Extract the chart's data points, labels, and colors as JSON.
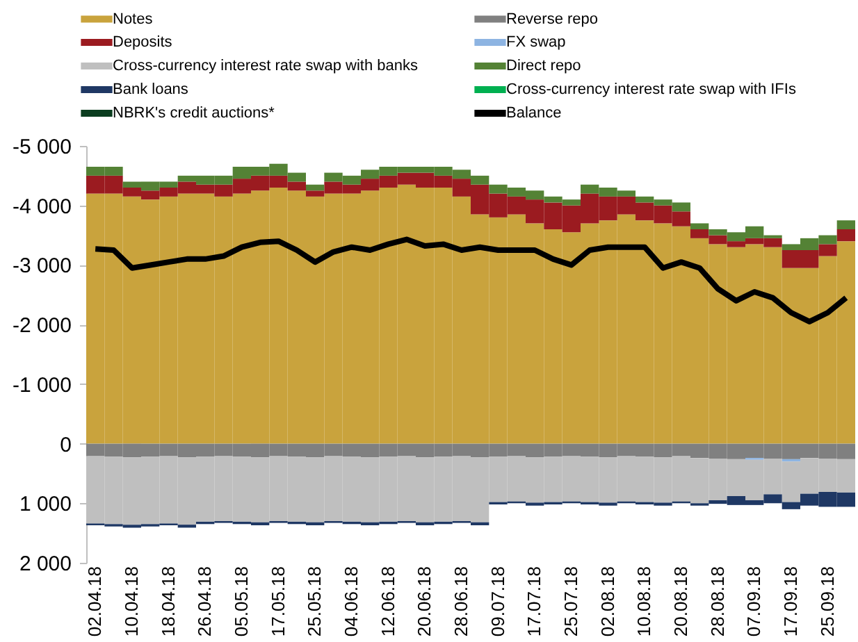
{
  "chart_data": {
    "type": "bar",
    "stacked": true,
    "legend": "top",
    "marker": "none",
    "categories": [
      "02.04.18",
      null,
      "10.04.18",
      null,
      "18.04.18",
      null,
      "26.04.18",
      null,
      "05.05.18",
      null,
      "17.05.18",
      null,
      "25.05.18",
      null,
      "04.06.18",
      null,
      "12.06.18",
      null,
      "20.06.18",
      null,
      "28.06.18",
      null,
      "09.07.18",
      null,
      "17.07.18",
      null,
      "25.07.18",
      null,
      "02.08.18",
      null,
      "10.08.18",
      null,
      "20.08.18",
      null,
      "28.08.18",
      null,
      "07.09.18",
      null,
      "17.09.18",
      null,
      "25.09.18",
      null
    ],
    "ylim": [
      2000,
      -5000
    ],
    "yticks": [
      {
        "value": -5000,
        "label": "-5 000"
      },
      {
        "value": -4000,
        "label": "-4 000"
      },
      {
        "value": -3000,
        "label": "-3 000"
      },
      {
        "value": -2000,
        "label": "-2 000"
      },
      {
        "value": -1000,
        "label": "-1 000"
      },
      0,
      {
        "value": 1000,
        "label": "1 000"
      },
      {
        "value": 2000,
        "label": "2 000"
      }
    ],
    "series": [
      {
        "name": "Notes",
        "color": "#c9a33d",
        "values": [
          -4200,
          -4200,
          -4150,
          -4100,
          -4150,
          -4200,
          -4200,
          -4150,
          -4200,
          -4250,
          -4300,
          -4250,
          -4150,
          -4200,
          -4200,
          -4250,
          -4300,
          -4350,
          -4300,
          -4300,
          -4150,
          -3850,
          -3800,
          -3850,
          -3700,
          -3600,
          -3550,
          -3700,
          -3750,
          -3850,
          -3750,
          -3700,
          -3650,
          -3450,
          -3350,
          -3300,
          -3350,
          -3300,
          -2950,
          -2950,
          -3150,
          -3400
        ]
      },
      {
        "name": "Reverse repo",
        "color": "#808080",
        "values": [
          210,
          220,
          230,
          220,
          210,
          230,
          220,
          210,
          220,
          230,
          210,
          220,
          230,
          210,
          220,
          230,
          220,
          210,
          230,
          220,
          210,
          230,
          220,
          210,
          230,
          220,
          210,
          220,
          230,
          210,
          220,
          230,
          210,
          240,
          250,
          260,
          240,
          250,
          260,
          240,
          250,
          260
        ]
      },
      {
        "name": "Deposits",
        "color": "#9b1b20",
        "values": [
          -300,
          -300,
          -150,
          -150,
          -150,
          -200,
          -150,
          -200,
          -250,
          -250,
          -200,
          -150,
          -100,
          -200,
          -150,
          -200,
          -200,
          -200,
          -250,
          -200,
          -300,
          -500,
          -400,
          -300,
          -400,
          -450,
          -450,
          -500,
          -400,
          -300,
          -300,
          -300,
          -250,
          -150,
          -150,
          -100,
          -100,
          -150,
          -300,
          -300,
          -200,
          -200
        ]
      },
      {
        "name": "FX swap",
        "color": "#8db4e2",
        "values": [
          0,
          0,
          0,
          0,
          0,
          0,
          0,
          0,
          0,
          0,
          0,
          0,
          0,
          0,
          0,
          0,
          0,
          0,
          0,
          0,
          0,
          0,
          0,
          0,
          0,
          0,
          0,
          0,
          0,
          0,
          0,
          0,
          0,
          0,
          0,
          0,
          30,
          0,
          40,
          0,
          0,
          0
        ]
      },
      {
        "name": "Cross-currency interest rate swap with banks",
        "color": "#bfbfbf",
        "values": [
          1130,
          1130,
          1130,
          1130,
          1130,
          1130,
          1090,
          1090,
          1090,
          1090,
          1090,
          1090,
          1090,
          1090,
          1090,
          1090,
          1090,
          1090,
          1090,
          1090,
          1090,
          1090,
          760,
          760,
          760,
          760,
          760,
          760,
          760,
          760,
          760,
          760,
          760,
          760,
          700,
          620,
          680,
          600,
          680,
          600,
          560,
          560
        ]
      },
      {
        "name": "Direct repo",
        "color": "#548235",
        "values": [
          -150,
          -150,
          -100,
          -150,
          -100,
          -100,
          -150,
          -150,
          -200,
          -150,
          -200,
          -150,
          -100,
          -150,
          -150,
          -150,
          -150,
          -100,
          -100,
          -150,
          -150,
          -150,
          -150,
          -150,
          -150,
          -100,
          -100,
          -150,
          -150,
          -100,
          -100,
          -100,
          -150,
          -100,
          -100,
          -150,
          -200,
          -50,
          -100,
          -200,
          -150,
          -150
        ]
      },
      {
        "name": "Bank loans",
        "color": "#1f3864",
        "values": [
          30,
          40,
          50,
          40,
          30,
          50,
          40,
          30,
          40,
          50,
          30,
          40,
          50,
          30,
          40,
          50,
          40,
          30,
          50,
          40,
          30,
          50,
          40,
          30,
          50,
          40,
          30,
          40,
          50,
          30,
          40,
          50,
          30,
          40,
          60,
          150,
          80,
          150,
          120,
          200,
          250,
          240
        ]
      },
      {
        "name": "Cross-currency interest rate swap with IFIs",
        "color": "#00b050",
        "values": [
          0,
          0,
          0,
          0,
          0,
          0,
          0,
          0,
          0,
          0,
          0,
          0,
          0,
          0,
          0,
          0,
          0,
          0,
          0,
          0,
          0,
          0,
          0,
          0,
          0,
          0,
          0,
          0,
          0,
          0,
          0,
          0,
          0,
          0,
          0,
          0,
          0,
          0,
          0,
          0,
          0,
          0
        ]
      },
      {
        "name": "NBRK's credit auctions*",
        "color": "#0b3d1f",
        "values": [
          0,
          0,
          0,
          0,
          0,
          0,
          0,
          0,
          0,
          0,
          0,
          0,
          0,
          0,
          0,
          0,
          0,
          0,
          0,
          0,
          0,
          0,
          0,
          0,
          0,
          0,
          0,
          0,
          0,
          0,
          0,
          0,
          0,
          0,
          0,
          0,
          0,
          0,
          0,
          0,
          0,
          0
        ]
      },
      {
        "name": "Balance",
        "type": "line",
        "color": "#000000",
        "values": [
          -3270,
          -3250,
          -2950,
          -3000,
          -3050,
          -3100,
          -3100,
          -3150,
          -3300,
          -3380,
          -3400,
          -3250,
          -3050,
          -3220,
          -3300,
          -3250,
          -3350,
          -3430,
          -3320,
          -3350,
          -3250,
          -3300,
          -3250,
          -3250,
          -3250,
          -3100,
          -3000,
          -3250,
          -3300,
          -3300,
          -3300,
          -2950,
          -3050,
          -2950,
          -2600,
          -2400,
          -2550,
          -2450,
          -2200,
          -2050,
          -2200,
          -2450
        ]
      }
    ]
  }
}
